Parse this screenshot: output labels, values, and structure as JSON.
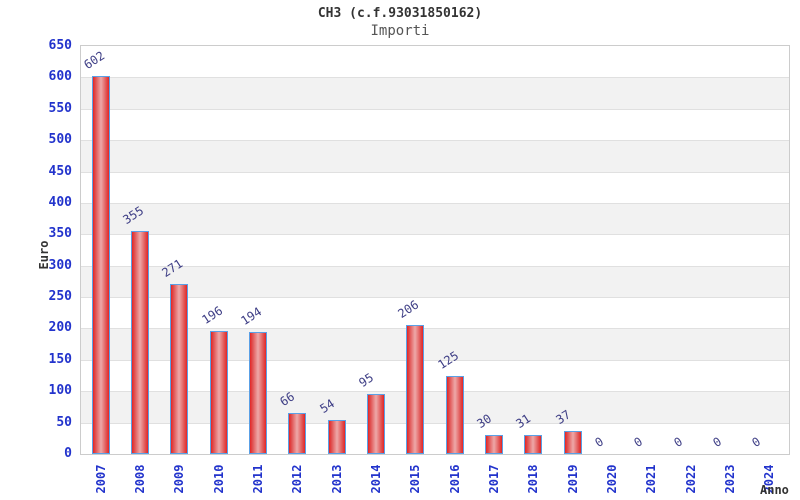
{
  "chart_data": {
    "type": "bar",
    "title": "CH3 (c.f.93031850162)",
    "subtitle": "Importi",
    "xlabel": "Anno",
    "ylabel": "Euro",
    "categories": [
      "2007",
      "2008",
      "2009",
      "2010",
      "2011",
      "2012",
      "2013",
      "2014",
      "2015",
      "2016",
      "2017",
      "2018",
      "2019",
      "2020",
      "2021",
      "2022",
      "2023",
      "2024"
    ],
    "values": [
      602,
      355,
      271,
      196,
      194,
      66,
      54,
      95,
      206,
      125,
      30,
      31,
      37,
      0,
      0,
      0,
      0,
      0
    ],
    "ylim": [
      0,
      650
    ],
    "ytick_step": 50,
    "grid": "horizontal-bands",
    "legend": "none",
    "band_pattern": "alternating white / light gray stripes every 50 units",
    "colors": {
      "tick_label": "#2233cc",
      "value_label": "#3d3d85",
      "bar_fill_edge": "#e42525",
      "bar_fill_center": "#eda3a3",
      "bar_border": "#5aa0e6",
      "band_gray": "#f2f2f2",
      "gridline": "#e0e0e0",
      "plot_border": "#cccccc",
      "title": "#333333",
      "subtitle": "#555555"
    }
  }
}
